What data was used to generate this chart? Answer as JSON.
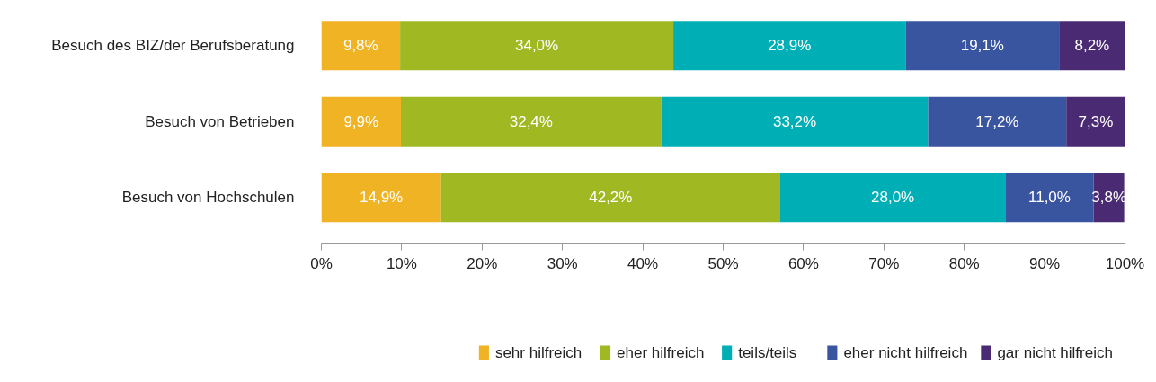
{
  "chart_data": {
    "type": "bar",
    "orientation": "horizontal",
    "stacked": true,
    "categories": [
      "Besuch des BIZ/der Berufsberatung",
      "Besuch von Betrieben",
      "Besuch von Hochschulen"
    ],
    "series": [
      {
        "name": "sehr hilfreich",
        "color": "#f0b323",
        "values": [
          9.8,
          9.9,
          14.9
        ],
        "value_labels": [
          "9,8%",
          "9,9%",
          "14,9%"
        ]
      },
      {
        "name": "eher hilfreich",
        "color": "#a0b822",
        "values": [
          34.0,
          32.4,
          42.2
        ],
        "value_labels": [
          "34,0%",
          "32,4%",
          "42,2%"
        ]
      },
      {
        "name": "teils/teils",
        "color": "#00afb5",
        "values": [
          28.9,
          33.2,
          28.0
        ],
        "value_labels": [
          "28,9%",
          "33,2%",
          "28,0%"
        ]
      },
      {
        "name": "eher nicht hilfreich",
        "color": "#3a55a0",
        "values": [
          19.1,
          17.2,
          11.0
        ],
        "value_labels": [
          "19,1%",
          "17,2%",
          "11,0%"
        ]
      },
      {
        "name": "gar nicht hilfreich",
        "color": "#4a2a72",
        "values": [
          8.2,
          7.3,
          3.8
        ],
        "value_labels": [
          "8,2%",
          "7,3%",
          "3,8%"
        ]
      }
    ],
    "xlim": [
      0,
      100
    ],
    "xticks": [
      {
        "value": 0,
        "label": "0%"
      },
      {
        "value": 10,
        "label": "10%"
      },
      {
        "value": 20,
        "label": "20%"
      },
      {
        "value": 30,
        "label": "30%"
      },
      {
        "value": 40,
        "label": "40%"
      },
      {
        "value": 50,
        "label": "50%"
      },
      {
        "value": 60,
        "label": "60%"
      },
      {
        "value": 70,
        "label": "70%"
      },
      {
        "value": 80,
        "label": "80%"
      },
      {
        "value": 90,
        "label": "90%"
      },
      {
        "value": 100,
        "label": "100%"
      }
    ],
    "grid": false,
    "legend": "bottom right"
  }
}
